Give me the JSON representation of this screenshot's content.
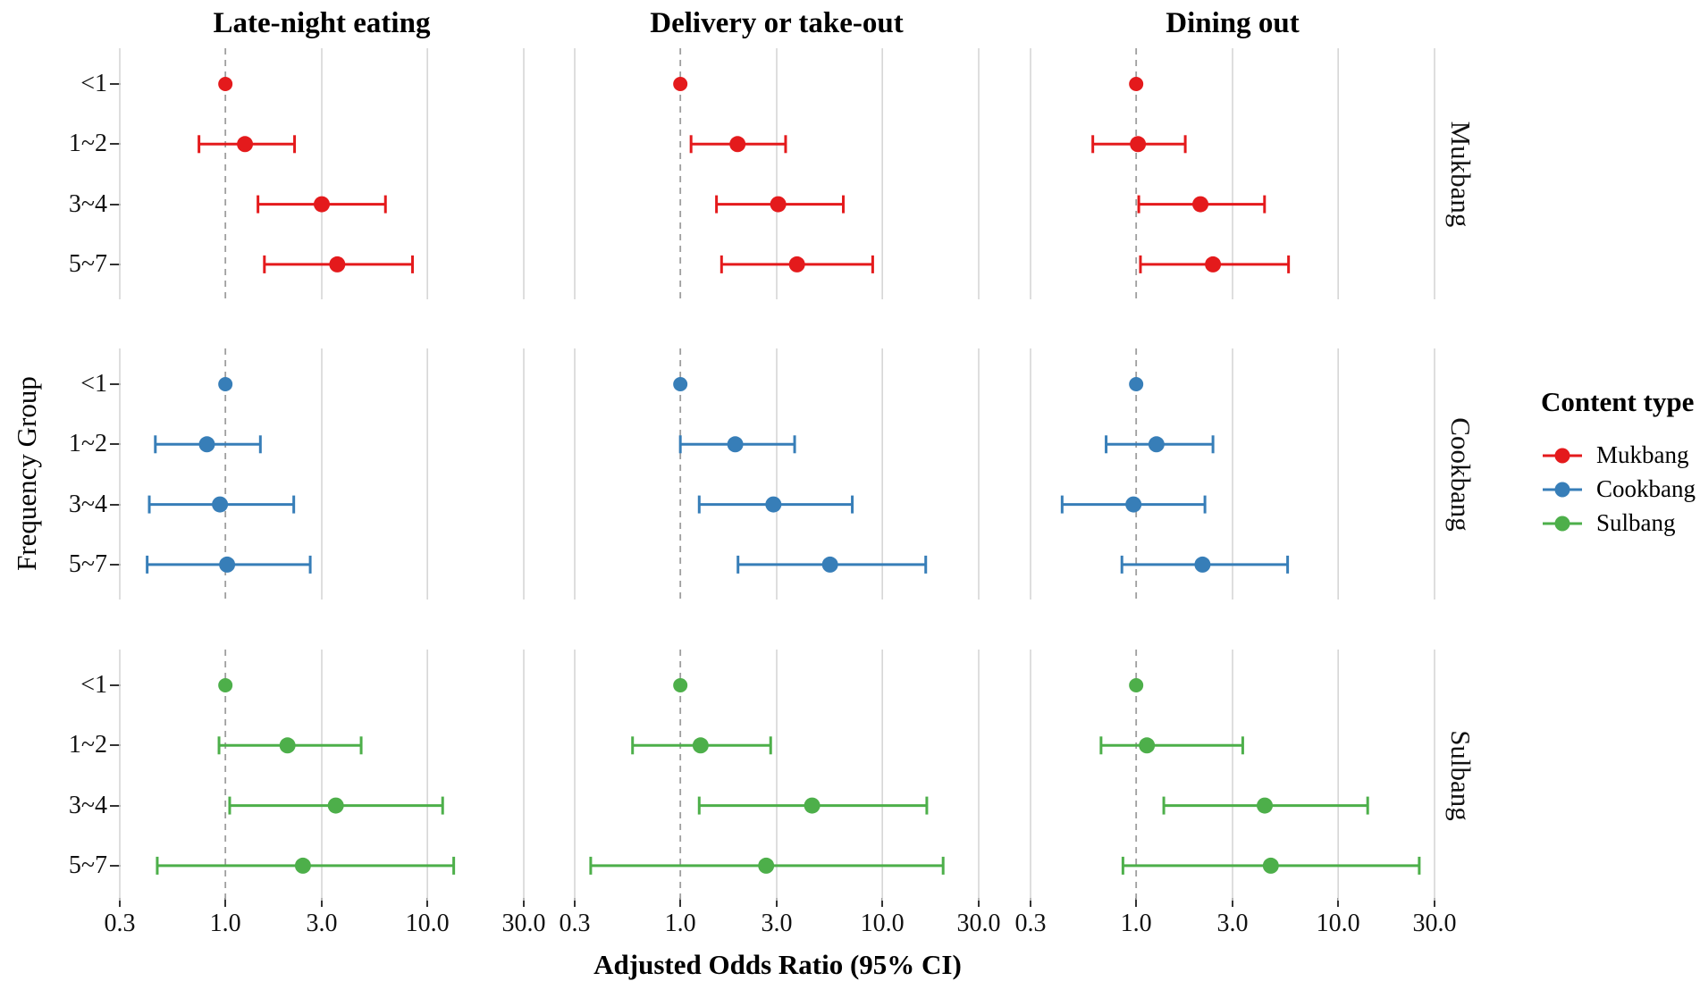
{
  "figure": {
    "x_axis_title": "Adjusted Odds Ratio (95% CI)",
    "y_axis_title": "Frequency Group"
  },
  "legend": {
    "title": "Content type",
    "items": [
      {
        "label": "Mukbang",
        "color": "#e41a1c"
      },
      {
        "label": "Cookbang",
        "color": "#377eb8"
      },
      {
        "label": "Sulbang",
        "color": "#4daf4a"
      }
    ]
  },
  "chart_data": {
    "type": "scatter",
    "subtype": "faceted_forest_plot",
    "title": "",
    "xlabel": "Adjusted Odds Ratio (95% CI)",
    "ylabel": "Frequency Group",
    "x_scale": "log10",
    "x_range": [
      0.3,
      30
    ],
    "x_tick_values": [
      0.3,
      1.0,
      3.0,
      10.0,
      30.0
    ],
    "x_tick_labels": [
      "0.3",
      "1.0",
      "3.0",
      "10.0",
      "30.0"
    ],
    "reference_line_x": 1.0,
    "grid": "on",
    "legend_position": "right",
    "y_categories": [
      "<1",
      "1~2",
      "3~4",
      "5~7"
    ],
    "column_facets": [
      "Late-night eating",
      "Delivery or take-out",
      "Dining out"
    ],
    "row_facets": [
      "Mukbang",
      "Cookbang",
      "Sulbang"
    ],
    "gridline_color": "#d6d6d6",
    "reference_line_color": "#9e9e9e",
    "rows": [
      {
        "name": "Mukbang",
        "color": "#e41a1c",
        "cols": [
          {
            "facet": "Late-night eating",
            "points": [
              {
                "group": "<1",
                "or": 1.0,
                "lo": null,
                "hi": null
              },
              {
                "group": "1~2",
                "or": 1.25,
                "lo": 0.74,
                "hi": 2.2
              },
              {
                "group": "3~4",
                "or": 3.0,
                "lo": 1.45,
                "hi": 6.2
              },
              {
                "group": "5~7",
                "or": 3.58,
                "lo": 1.56,
                "hi": 8.44
              }
            ]
          },
          {
            "facet": "Delivery or take-out",
            "points": [
              {
                "group": "<1",
                "or": 1.0,
                "lo": null,
                "hi": null
              },
              {
                "group": "1~2",
                "or": 1.92,
                "lo": 1.13,
                "hi": 3.32
              },
              {
                "group": "3~4",
                "or": 3.05,
                "lo": 1.51,
                "hi": 6.41
              },
              {
                "group": "5~7",
                "or": 3.78,
                "lo": 1.6,
                "hi": 8.96
              }
            ]
          },
          {
            "facet": "Dining out",
            "points": [
              {
                "group": "<1",
                "or": 1.0,
                "lo": null,
                "hi": null
              },
              {
                "group": "1~2",
                "or": 1.02,
                "lo": 0.61,
                "hi": 1.75
              },
              {
                "group": "3~4",
                "or": 2.08,
                "lo": 1.03,
                "hi": 4.32
              },
              {
                "group": "5~7",
                "or": 2.4,
                "lo": 1.05,
                "hi": 5.68
              }
            ]
          }
        ]
      },
      {
        "name": "Cookbang",
        "color": "#377eb8",
        "cols": [
          {
            "facet": "Late-night eating",
            "points": [
              {
                "group": "<1",
                "or": 1.0,
                "lo": null,
                "hi": null
              },
              {
                "group": "1~2",
                "or": 0.81,
                "lo": 0.45,
                "hi": 1.49
              },
              {
                "group": "3~4",
                "or": 0.94,
                "lo": 0.42,
                "hi": 2.18
              },
              {
                "group": "5~7",
                "or": 1.02,
                "lo": 0.41,
                "hi": 2.63
              }
            ]
          },
          {
            "facet": "Delivery or take-out",
            "points": [
              {
                "group": "<1",
                "or": 1.0,
                "lo": null,
                "hi": null
              },
              {
                "group": "1~2",
                "or": 1.87,
                "lo": 1.0,
                "hi": 3.68
              },
              {
                "group": "3~4",
                "or": 2.89,
                "lo": 1.24,
                "hi": 7.1
              },
              {
                "group": "5~7",
                "or": 5.51,
                "lo": 1.93,
                "hi": 16.4
              }
            ]
          },
          {
            "facet": "Dining out",
            "points": [
              {
                "group": "<1",
                "or": 1.0,
                "lo": null,
                "hi": null
              },
              {
                "group": "1~2",
                "or": 1.26,
                "lo": 0.71,
                "hi": 2.4
              },
              {
                "group": "3~4",
                "or": 0.97,
                "lo": 0.43,
                "hi": 2.19
              },
              {
                "group": "5~7",
                "or": 2.13,
                "lo": 0.85,
                "hi": 5.62
              }
            ]
          }
        ]
      },
      {
        "name": "Sulbang",
        "color": "#4daf4a",
        "cols": [
          {
            "facet": "Late-night eating",
            "points": [
              {
                "group": "<1",
                "or": 1.0,
                "lo": null,
                "hi": null
              },
              {
                "group": "1~2",
                "or": 2.03,
                "lo": 0.93,
                "hi": 4.7
              },
              {
                "group": "3~4",
                "or": 3.52,
                "lo": 1.05,
                "hi": 11.9
              },
              {
                "group": "5~7",
                "or": 2.42,
                "lo": 0.46,
                "hi": 13.5
              }
            ]
          },
          {
            "facet": "Delivery or take-out",
            "points": [
              {
                "group": "<1",
                "or": 1.0,
                "lo": null,
                "hi": null
              },
              {
                "group": "1~2",
                "or": 1.26,
                "lo": 0.58,
                "hi": 2.8
              },
              {
                "group": "3~4",
                "or": 4.49,
                "lo": 1.24,
                "hi": 16.6
              },
              {
                "group": "5~7",
                "or": 2.66,
                "lo": 0.36,
                "hi": 20.0
              }
            ]
          },
          {
            "facet": "Dining out",
            "points": [
              {
                "group": "<1",
                "or": 1.0,
                "lo": null,
                "hi": null
              },
              {
                "group": "1~2",
                "or": 1.13,
                "lo": 0.67,
                "hi": 3.37
              },
              {
                "group": "3~4",
                "or": 4.33,
                "lo": 1.37,
                "hi": 14.0
              },
              {
                "group": "5~7",
                "or": 4.64,
                "lo": 0.86,
                "hi": 25.2
              }
            ]
          }
        ]
      }
    ]
  }
}
